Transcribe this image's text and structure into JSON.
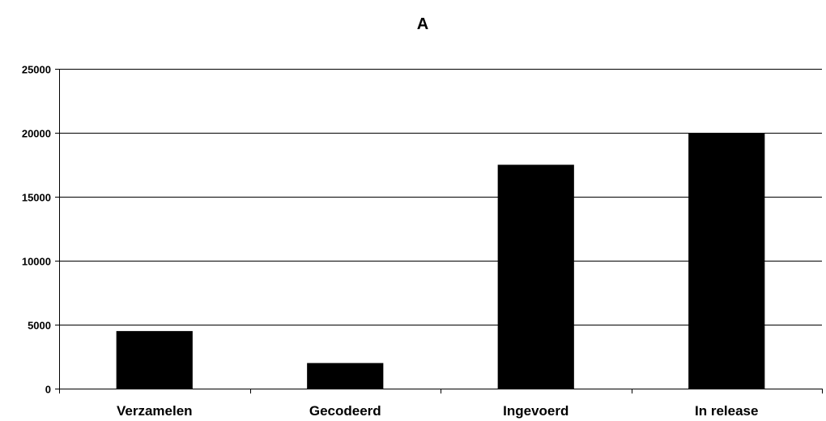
{
  "chart_data": {
    "type": "bar",
    "title": "A",
    "xlabel": "",
    "ylabel": "",
    "categories": [
      "Verzamelen",
      "Gecodeerd",
      "Ingevoerd",
      "In release"
    ],
    "values": [
      4500,
      2000,
      17500,
      20000
    ],
    "ylim": [
      0,
      25000
    ],
    "yticks": [
      0,
      5000,
      10000,
      15000,
      20000,
      25000
    ],
    "ytick_labels": [
      "0",
      "5000",
      "10000",
      "15000",
      "20000",
      "25000"
    ],
    "grid": true,
    "legend": "none",
    "colors": {
      "bar": "#000000",
      "gridline": "#000000",
      "axis": "#000000",
      "background": "#ffffff"
    }
  }
}
